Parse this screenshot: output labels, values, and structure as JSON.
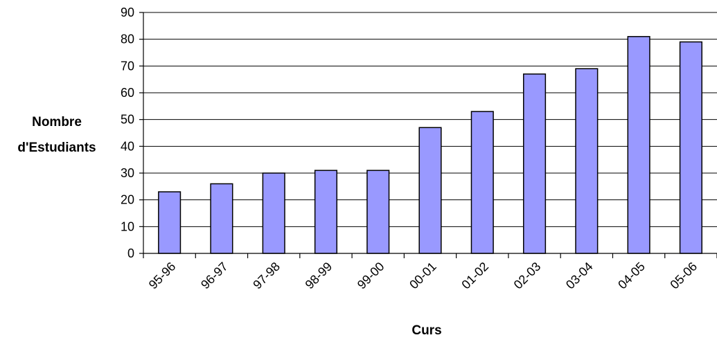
{
  "chart_data": {
    "type": "bar",
    "title": "",
    "xlabel": "Curs",
    "ylabel_lines": [
      "Nombre",
      "d'Estudiants"
    ],
    "categories": [
      "95-96",
      "96-97",
      "97-98",
      "98-99",
      "99-00",
      "00-01",
      "01-02",
      "02-03",
      "03-04",
      "04-05",
      "05-06"
    ],
    "values": [
      23,
      26,
      30,
      31,
      31,
      47,
      53,
      67,
      69,
      81,
      79
    ],
    "ylim": [
      0,
      90
    ],
    "yticks": [
      0,
      10,
      20,
      30,
      40,
      50,
      60,
      70,
      80,
      90
    ],
    "grid": true,
    "legend": "none",
    "colors": {
      "bar_fill": "#9999ff",
      "bar_stroke": "#000000",
      "gridline": "#000000",
      "axis": "#000000"
    }
  }
}
